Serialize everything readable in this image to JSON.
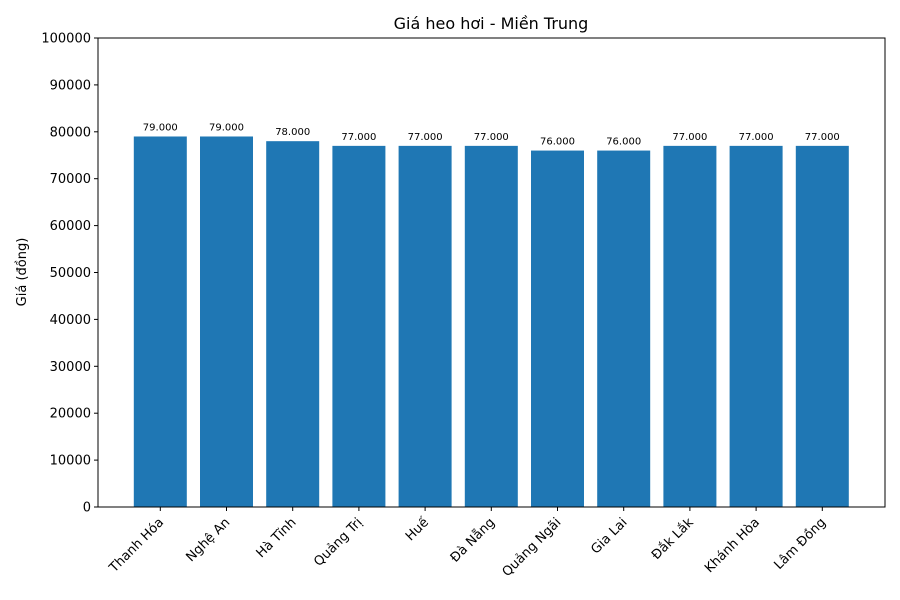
{
  "chart_data": {
    "type": "bar",
    "title": "Giá heo hơi - Miền Trung",
    "xlabel": "",
    "ylabel": "Giá (đồng)",
    "categories": [
      "Thanh Hóa",
      "Nghệ An",
      "Hà Tĩnh",
      "Quảng Trị",
      "Huế",
      "Đà Nẵng",
      "Quảng Ngãi",
      "Gia Lai",
      "Đắk Lắk",
      "Khánh Hòa",
      "Lâm Đồng"
    ],
    "values": [
      79000,
      79000,
      78000,
      77000,
      77000,
      77000,
      76000,
      76000,
      77000,
      77000,
      77000
    ],
    "value_labels": [
      "79.000",
      "79.000",
      "78.000",
      "77.000",
      "77.000",
      "77.000",
      "76.000",
      "76.000",
      "77.000",
      "77.000",
      "77.000"
    ],
    "ylim": [
      0,
      100000
    ],
    "yticks": [
      0,
      10000,
      20000,
      30000,
      40000,
      50000,
      60000,
      70000,
      80000,
      90000,
      100000
    ],
    "grid": false,
    "legend": null,
    "bar_color": "#1f77b4"
  }
}
